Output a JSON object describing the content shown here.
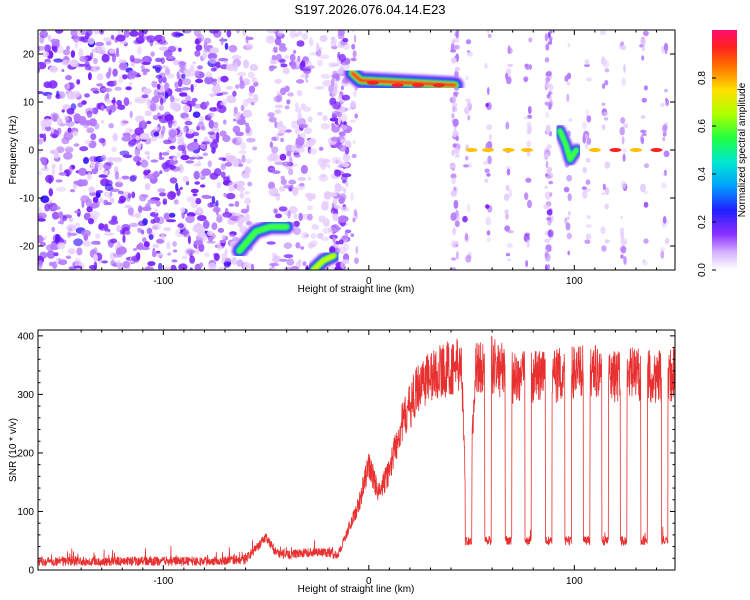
{
  "title": "S197.2026.076.04.14.E23",
  "colors": {
    "snr_line": "#e83030",
    "spectro_low": "#7a20ff",
    "frame": "#000000"
  },
  "colormap": [
    "#ffffff",
    "#e6ccff",
    "#b57aff",
    "#7a20ff",
    "#3010ff",
    "#1060ff",
    "#00c0ff",
    "#00e8c0",
    "#40ff40",
    "#c8ff00",
    "#ffd000",
    "#ff6000",
    "#ff2020",
    "#ff1060"
  ],
  "chart_data": [
    {
      "type": "heatmap",
      "title": "",
      "xlabel": "Height of straight line (km)",
      "ylabel": "Frequency (Hz)",
      "xlim": [
        -161,
        149
      ],
      "ylim": [
        -25,
        25
      ],
      "x_ticks": [
        -100,
        0,
        100
      ],
      "x_tick_labels": [
        "-100",
        "0",
        "100"
      ],
      "y_ticks": [
        -20,
        -10,
        0,
        10,
        20
      ],
      "y_tick_labels": [
        "-20",
        "-10",
        "0",
        "10",
        "20"
      ],
      "colorbar": {
        "label": "Normalized spectral amplitude",
        "range": [
          0,
          1
        ],
        "ticks": [
          0.0,
          0.2,
          0.4,
          0.6,
          0.8
        ],
        "tick_labels": [
          "0.0",
          "0.2",
          "0.4",
          "0.6",
          "0.8"
        ]
      },
      "features": [
        {
          "name": "low-altitude noise",
          "x_range": [
            -161,
            -10
          ],
          "freq_range": [
            -25,
            25
          ],
          "amplitude": 0.15
        },
        {
          "name": "stepping branch A",
          "points": [
            [
              -63,
              -21
            ],
            [
              -55,
              -17
            ],
            [
              -48,
              -16
            ],
            [
              -40,
              -16
            ]
          ],
          "amplitude": 0.4
        },
        {
          "name": "stepping branch B",
          "points": [
            [
              -27,
              -25
            ],
            [
              -22,
              -23
            ],
            [
              -17,
              -22
            ]
          ],
          "amplitude": 0.45
        },
        {
          "name": "upper tone",
          "x_range": [
            -8,
            42
          ],
          "freq": 14,
          "amplitude": 0.9
        },
        {
          "name": "zero tone",
          "x_range": [
            43,
            148
          ],
          "freq": 0,
          "amplitude": 0.95
        }
      ]
    },
    {
      "type": "line",
      "title": "",
      "xlabel": "Height of straight line (km)",
      "ylabel": "SNR (10 * v/v)",
      "xlim": [
        -161,
        149
      ],
      "ylim": [
        0,
        410
      ],
      "x_ticks": [
        -100,
        0,
        100
      ],
      "x_tick_labels": [
        "-100",
        "0",
        "100"
      ],
      "y_ticks": [
        0,
        100,
        200,
        300,
        400
      ],
      "y_tick_labels": [
        "0",
        "100",
        "200",
        "300",
        "400"
      ],
      "series": [
        {
          "name": "SNR",
          "x": [
            -161,
            -140,
            -120,
            -100,
            -80,
            -60,
            -50,
            -45,
            -40,
            -30,
            -20,
            -15,
            -10,
            -5,
            0,
            5,
            10,
            15,
            20,
            25,
            30,
            35,
            40,
            45,
            48,
            52,
            60,
            70,
            80,
            90,
            100,
            110,
            120,
            130,
            140,
            149
          ],
          "values": [
            15,
            15,
            15,
            15,
            15,
            18,
            55,
            30,
            25,
            30,
            30,
            25,
            70,
            110,
            180,
            130,
            170,
            240,
            280,
            320,
            330,
            340,
            345,
            350,
            45,
            345,
            350,
            330,
            330,
            330,
            340,
            340,
            330,
            335,
            330,
            335
          ]
        }
      ],
      "dropout_x": [
        48.5,
        58,
        68,
        77.5,
        87.5,
        97,
        106,
        115,
        124,
        134,
        144
      ],
      "dropout_level": 50
    }
  ]
}
